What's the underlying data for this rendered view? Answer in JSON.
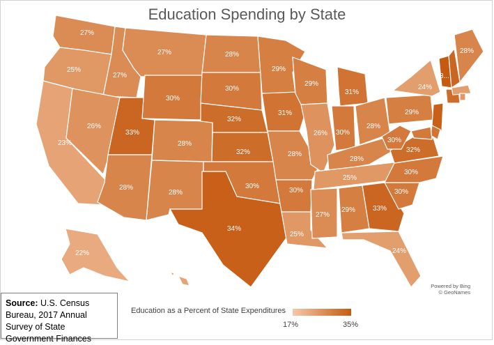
{
  "title": "Education Spending by State",
  "credit": {
    "line1": "Powered by Bing",
    "line2": "© GeoNames"
  },
  "source": {
    "label": "Source:",
    "text": "U.S. Census Bureau, 2017 Annual Survey of State Government Finances"
  },
  "legend": {
    "title": "Education as a Percent of State Expenditures",
    "min": "17%",
    "max": "35%",
    "min_color": "#f6c9a8",
    "max_color": "#c55a11",
    "min_value": 17,
    "max_value": 35
  },
  "chart_data": {
    "type": "choropleth",
    "metric": "Education as a Percent of State Expenditures",
    "range": [
      17,
      35
    ],
    "states": [
      {
        "name": "Washington",
        "value": 27,
        "label": "27%"
      },
      {
        "name": "Oregon",
        "value": 25,
        "label": "25%"
      },
      {
        "name": "California",
        "value": 23,
        "label": "23%"
      },
      {
        "name": "Idaho",
        "value": 27,
        "label": "27%"
      },
      {
        "name": "Nevada",
        "value": 26,
        "label": "26%"
      },
      {
        "name": "Montana",
        "value": 27,
        "label": "27%"
      },
      {
        "name": "Wyoming",
        "value": 30,
        "label": "30%"
      },
      {
        "name": "Utah",
        "value": 33,
        "label": "33%"
      },
      {
        "name": "Arizona",
        "value": 28,
        "label": "28%"
      },
      {
        "name": "Colorado",
        "value": 28,
        "label": "28%"
      },
      {
        "name": "New Mexico",
        "value": 28,
        "label": "28%"
      },
      {
        "name": "North Dakota",
        "value": 28,
        "label": "28%"
      },
      {
        "name": "South Dakota",
        "value": 30,
        "label": "30%"
      },
      {
        "name": "Nebraska",
        "value": 32,
        "label": "32%"
      },
      {
        "name": "Kansas",
        "value": 32,
        "label": "32%"
      },
      {
        "name": "Oklahoma",
        "value": 30,
        "label": "30%"
      },
      {
        "name": "Texas",
        "value": 34,
        "label": "34%"
      },
      {
        "name": "Minnesota",
        "value": 29,
        "label": "29%"
      },
      {
        "name": "Iowa",
        "value": 31,
        "label": "31%"
      },
      {
        "name": "Missouri",
        "value": 28,
        "label": "28%"
      },
      {
        "name": "Arkansas",
        "value": 30,
        "label": "30%"
      },
      {
        "name": "Louisiana",
        "value": 25,
        "label": "25%"
      },
      {
        "name": "Wisconsin",
        "value": 29,
        "label": "29%"
      },
      {
        "name": "Illinois",
        "value": 26,
        "label": "26%"
      },
      {
        "name": "Michigan",
        "value": 31,
        "label": "31%"
      },
      {
        "name": "Indiana",
        "value": 30,
        "label": "30%"
      },
      {
        "name": "Ohio",
        "value": 28,
        "label": "28%"
      },
      {
        "name": "Kentucky",
        "value": 28,
        "label": "28%"
      },
      {
        "name": "Tennessee",
        "value": 25,
        "label": "25%"
      },
      {
        "name": "Mississippi",
        "value": 27,
        "label": "27%"
      },
      {
        "name": "Alabama",
        "value": 29,
        "label": "29%"
      },
      {
        "name": "Georgia",
        "value": 33,
        "label": "33%"
      },
      {
        "name": "Florida",
        "value": 24,
        "label": "24%"
      },
      {
        "name": "South Carolina",
        "value": 30,
        "label": "30%"
      },
      {
        "name": "North Carolina",
        "value": 30,
        "label": "30%"
      },
      {
        "name": "Virginia",
        "value": 32,
        "label": "32%"
      },
      {
        "name": "West Virginia",
        "value": 30,
        "label": "30%"
      },
      {
        "name": "Pennsylvania",
        "value": 29,
        "label": "29%"
      },
      {
        "name": "New York",
        "value": 24,
        "label": "24%"
      },
      {
        "name": "Vermont",
        "value": 35,
        "label": "3..."
      },
      {
        "name": "Maine",
        "value": 28,
        "label": "28%"
      },
      {
        "name": "Alaska",
        "value": 22,
        "label": "22%"
      },
      {
        "name": "New Hampshire",
        "value": 33
      },
      {
        "name": "New Jersey",
        "value": 34
      },
      {
        "name": "Connecticut",
        "value": 32
      },
      {
        "name": "Massachusetts",
        "value": 24
      },
      {
        "name": "Rhode Island",
        "value": 25
      },
      {
        "name": "Delaware",
        "value": 31
      },
      {
        "name": "Maryland",
        "value": 30
      },
      {
        "name": "Hawaii",
        "value": 23
      }
    ]
  }
}
